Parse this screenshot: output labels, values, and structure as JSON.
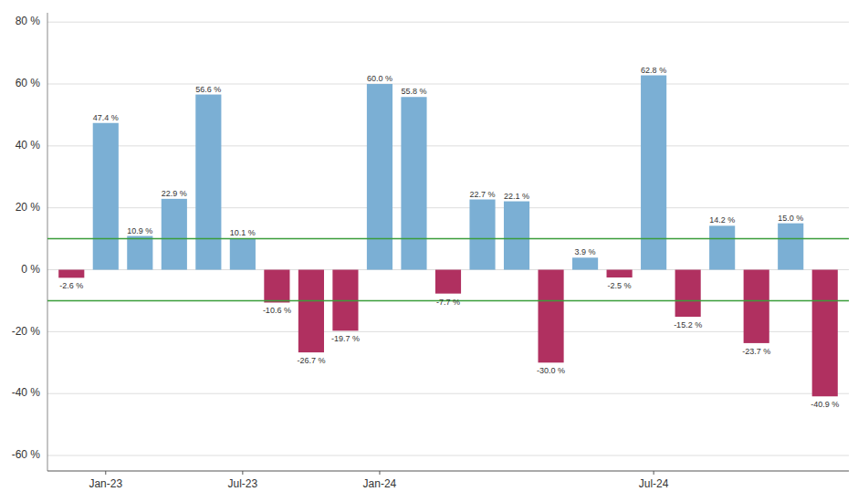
{
  "chart_data": {
    "type": "bar",
    "categories": [
      null,
      "Jan-23",
      null,
      null,
      null,
      "Jul-23",
      null,
      null,
      null,
      "Jan-24",
      null,
      null,
      null,
      null,
      null,
      null,
      null,
      "Jul-24",
      null,
      null,
      null,
      null,
      null
    ],
    "values": [
      -2.6,
      47.4,
      10.9,
      22.9,
      56.6,
      10.1,
      -10.6,
      -26.7,
      -19.7,
      60.0,
      55.8,
      -7.7,
      22.7,
      22.1,
      -30.0,
      3.9,
      -2.5,
      62.8,
      -15.2,
      14.2,
      -23.7,
      15.0,
      -40.9
    ],
    "value_labels": [
      "-2.6 %",
      "47.4 %",
      "10.9 %",
      "22.9 %",
      "56.6 %",
      "10.1 %",
      "-10.6 %",
      "-26.7 %",
      "-19.7 %",
      "60.0 %",
      "55.8 %",
      "-7.7 %",
      "22.7 %",
      "22.1 %",
      "-30.0 %",
      "3.9 %",
      "-2.5 %",
      "62.8 %",
      "-15.2 %",
      "14.2 %",
      "-23.7 %",
      "15.0 %",
      "-40.9 %"
    ],
    "colors": [
      "#b03060",
      "#7bafd4",
      "#7bafd4",
      "#7bafd4",
      "#7bafd4",
      "#7bafd4",
      "#b03060",
      "#b03060",
      "#b03060",
      "#7bafd4",
      "#7bafd4",
      "#b03060",
      "#7bafd4",
      "#7bafd4",
      "#b03060",
      "#7bafd4",
      "#b03060",
      "#7bafd4",
      "#b03060",
      "#7bafd4",
      "#b03060",
      "#7bafd4",
      "#b03060"
    ],
    "data_labels": true,
    "reference_lines": [
      {
        "value": 10,
        "color": "#3a9d3a"
      },
      {
        "value": -10,
        "color": "#3a9d3a"
      }
    ],
    "ylim": [
      -65,
      83
    ],
    "yticks": [
      {
        "value": -60,
        "label": "-60 %"
      },
      {
        "value": -40,
        "label": "-40 %"
      },
      {
        "value": -20,
        "label": "-20 %"
      },
      {
        "value": 0,
        "label": "0 %"
      },
      {
        "value": 20,
        "label": "20 %"
      },
      {
        "value": 40,
        "label": "40 %"
      },
      {
        "value": 60,
        "label": "60 %"
      },
      {
        "value": 80,
        "label": "80 %"
      }
    ],
    "grid": true
  }
}
